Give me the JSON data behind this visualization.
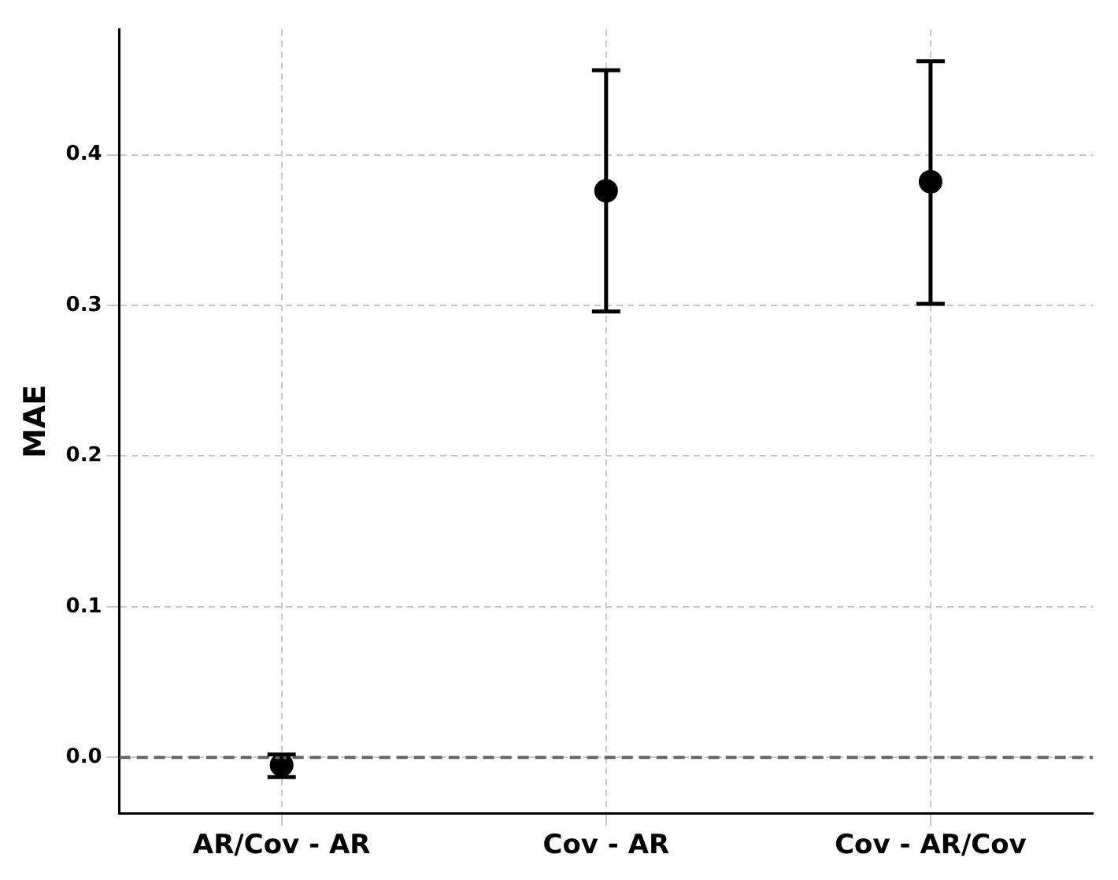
{
  "chart_data": {
    "type": "scatter",
    "ylabel": "MAE",
    "categories": [
      "AR/Cov - AR",
      "Cov - AR",
      "Cov - AR/Cov"
    ],
    "series": [
      {
        "color": "#000000",
        "values": [
          -0.005,
          0.376,
          0.382
        ],
        "errors": [
          [
            -0.013,
            0.002
          ],
          [
            0.296,
            0.456
          ],
          [
            0.301,
            0.462
          ]
        ]
      }
    ],
    "ylim": [
      -0.037,
      0.483
    ],
    "yticks": [
      {
        "value": 0,
        "label": "0.0"
      },
      0.1,
      0.2,
      0.3,
      0.4
    ],
    "grid": true,
    "marker": "circle",
    "ref_lines": [
      {
        "axis": "y",
        "value": 0,
        "color": "#666666",
        "line_style": "dashed"
      }
    ]
  }
}
